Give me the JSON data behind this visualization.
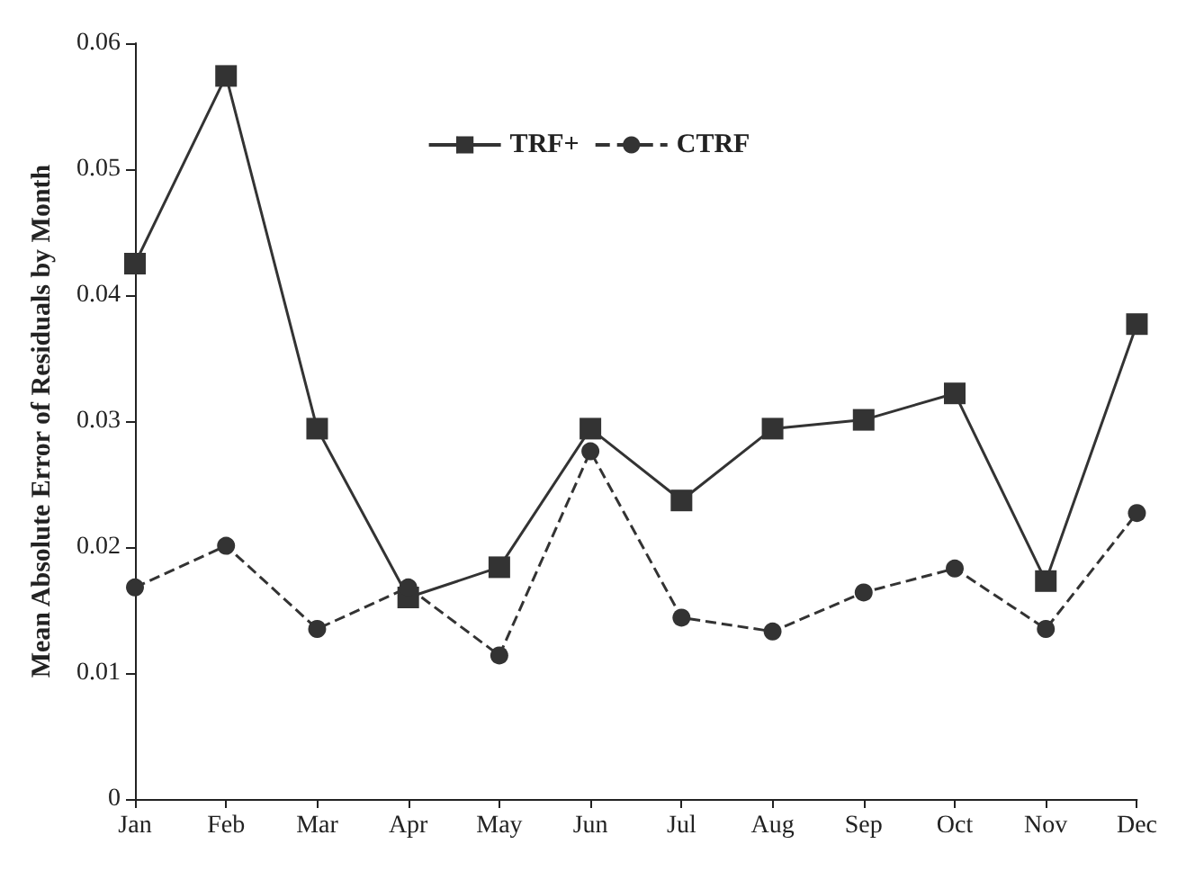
{
  "chart_data": {
    "type": "line",
    "ylabel": "Mean Absolute Error of Residuals by Month",
    "categories": [
      "Jan",
      "Feb",
      "Mar",
      "Apr",
      "May",
      "Jun",
      "Jul",
      "Aug",
      "Sep",
      "Oct",
      "Nov",
      "Dec"
    ],
    "series": [
      {
        "name": "TRF+",
        "color": "#333333",
        "marker": "square",
        "line_style": "solid",
        "values": [
          0.0425,
          0.0574,
          0.0294,
          0.016,
          0.0184,
          0.0294,
          0.0237,
          0.0294,
          0.0301,
          0.0322,
          0.0173,
          0.0377
        ]
      },
      {
        "name": "CTRF",
        "color": "#333333",
        "marker": "circle",
        "line_style": "dashed",
        "values": [
          0.0168,
          0.0201,
          0.0135,
          0.0168,
          0.0114,
          0.0276,
          0.0144,
          0.0133,
          0.0164,
          0.0183,
          0.0135,
          0.0227
        ]
      }
    ],
    "ylim": [
      0,
      0.06
    ],
    "yticks": [
      0,
      0.01,
      0.02,
      0.03,
      0.04,
      0.05,
      0.06
    ],
    "grid": false,
    "legend": "top"
  }
}
